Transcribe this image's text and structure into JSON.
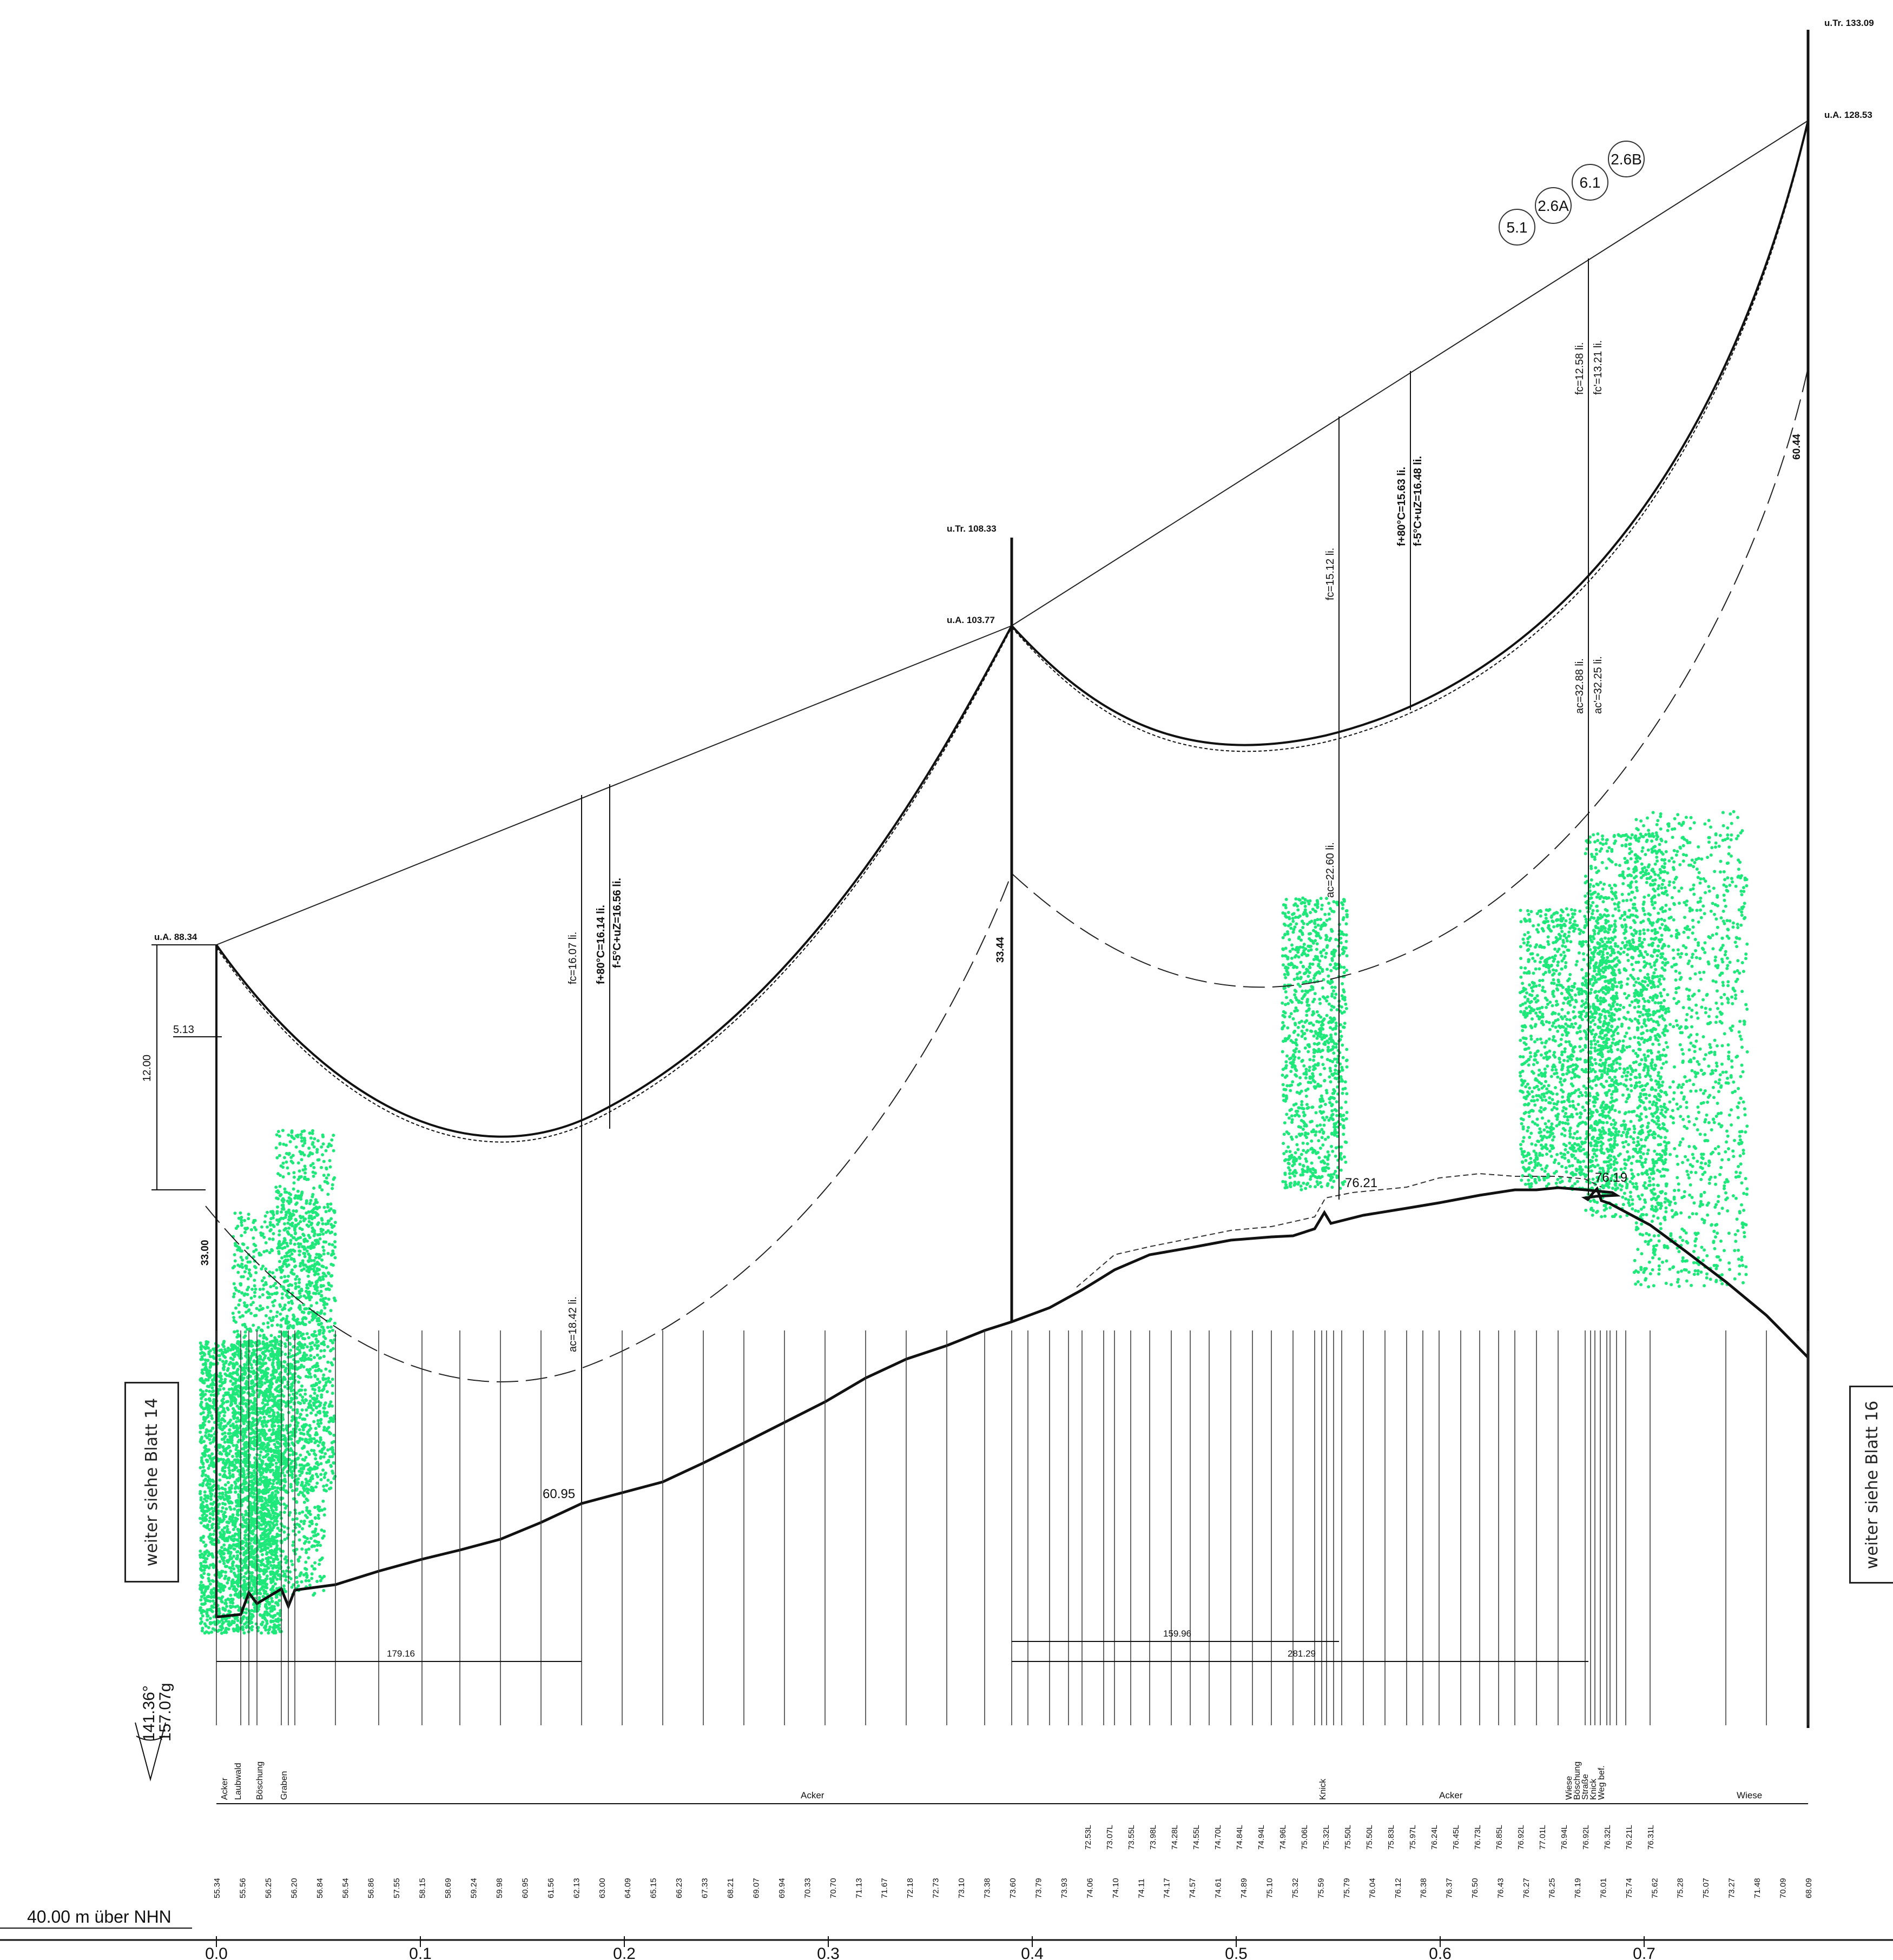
{
  "datum_label": "40.00 m über NHN",
  "prev_sheet": "weiter siehe Blatt 14",
  "next_sheet": "weiter siehe Blatt 16",
  "angle_deg": "141.36°",
  "angle_gon": "157.07g",
  "km_ticks": [
    "0.0",
    "0.1",
    "0.2",
    "0.3",
    "0.4",
    "0.5",
    "0.6",
    "0.7"
  ],
  "towers": [
    {
      "name": "left",
      "u_a": "u.A. 88.34",
      "height": "33.00"
    },
    {
      "name": "middle",
      "u_tr": "u.Tr. 108.33",
      "u_a": "u.A. 103.77",
      "height": "33.44"
    },
    {
      "name": "right",
      "u_tr": "u.Tr. 133.09",
      "u_a": "u.A. 128.53",
      "height": "60.44"
    }
  ],
  "circuits": [
    "5.1",
    "2.6A",
    "6.1",
    "2.6B"
  ],
  "span1": {
    "fc": "fc=16.07 li.",
    "f80": "f+80°C=16.14 li.",
    "f5": "f-5°C+uZ=16.56 li.",
    "ac": "ac=18.42 li.",
    "ground": "60.95",
    "dist": "179.16"
  },
  "span2": {
    "fc": "fc=15.12 li.",
    "f80": "f+80°C=15.63 li.",
    "f5": "f-5°C+uZ=16.48 li.",
    "ac": "ac=22.60 li.",
    "fc2": "fc=12.58 li.",
    "fc2b": "fc'=13.21 li.",
    "ac2": "ac=32.88 li.",
    "ac2b": "ac'=32.25 li.",
    "ground1": "76.21",
    "ground2": "76.19",
    "dist1": "159.96",
    "dist2": "281.29"
  },
  "dims": {
    "d1": "5.13",
    "d2": "12.00"
  },
  "land_use": [
    "Acker",
    "Laubwald",
    "Böschung",
    "Graben",
    "Acker",
    "Knick",
    "Acker",
    "Wiese",
    "Böschung",
    "Straße",
    "Knick",
    "Weg bef.",
    "Wiese"
  ],
  "elevations_row": [
    "55.34",
    "55.56",
    "56.25",
    "56.20",
    "56.84",
    "56.54",
    "56.86",
    "57.55",
    "58.15",
    "58.69",
    "59.24",
    "59.98",
    "60.95",
    "61.56",
    "62.13",
    "63.00",
    "64.09",
    "65.15",
    "66.23",
    "67.33",
    "68.21",
    "69.07",
    "69.94",
    "70.33",
    "70.70",
    "71.13",
    "71.67",
    "72.18",
    "72.73",
    "73.10",
    "73.38",
    "73.60",
    "73.79",
    "73.93",
    "74.06",
    "74.10",
    "74.11",
    "74.17",
    "74.57",
    "74.61",
    "74.89",
    "75.10",
    "75.32",
    "75.59",
    "75.79",
    "76.04",
    "76.12",
    "76.38",
    "76.37",
    "76.50",
    "76.43",
    "76.27",
    "76.25",
    "76.19",
    "76.01",
    "75.74",
    "75.62",
    "75.28",
    "75.07",
    "73.27",
    "71.48",
    "70.09",
    "68.09"
  ],
  "offsets_row": [
    "72.53L",
    "73.07L",
    "73.55L",
    "73.98L",
    "74.28L",
    "74.55L",
    "74.70L",
    "74.84L",
    "74.94L",
    "74.96L",
    "75.06L",
    "75.32L",
    "75.50L",
    "75.50L",
    "75.83L",
    "75.97L",
    "76.24L",
    "76.45L",
    "76.73L",
    "76.85L",
    "76.92L",
    "77.01L",
    "76.94L",
    "76.92L",
    "76.32L",
    "76.21L",
    "76.31L"
  ],
  "colors": {
    "line": "#111111",
    "trees": "#1fe87a"
  }
}
